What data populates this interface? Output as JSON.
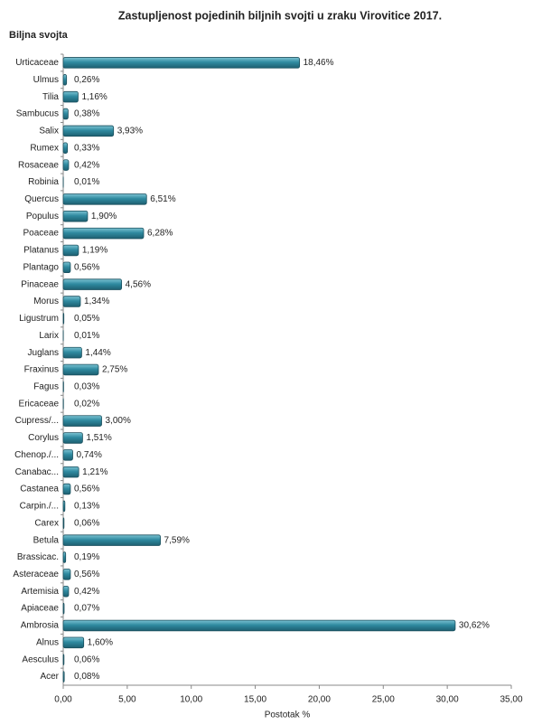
{
  "chart_data": {
    "type": "bar",
    "orientation": "horizontal",
    "title": "Zastupljenost pojedinih biljnih svojti u zraku Virovitice 2017.",
    "y_label": "Biljna svojta",
    "x_label": "Postotak %",
    "categories": [
      "Urticaceae",
      "Ulmus",
      "Tilia",
      "Sambucus",
      "Salix",
      "Rumex",
      "Rosaceae",
      "Robinia",
      "Quercus",
      "Populus",
      "Poaceae",
      "Platanus",
      "Plantago",
      "Pinaceae",
      "Morus",
      "Ligustrum",
      "Larix",
      "Juglans",
      "Fraxinus",
      "Fagus",
      "Ericaceae",
      "Cupress/...",
      "Corylus",
      "Chenop./...",
      "Canabac...",
      "Castanea",
      "Carpin./...",
      "Carex",
      "Betula",
      "Brassicac.",
      "Asteraceae",
      "Artemisia",
      "Apiaceae",
      "Ambrosia",
      "Alnus",
      "Aesculus",
      "Acer"
    ],
    "values": [
      18.46,
      0.26,
      1.16,
      0.38,
      3.93,
      0.33,
      0.42,
      0.01,
      6.51,
      1.9,
      6.28,
      1.19,
      0.56,
      4.56,
      1.34,
      0.05,
      0.01,
      1.44,
      2.75,
      0.03,
      0.02,
      3.0,
      1.51,
      0.74,
      1.21,
      0.56,
      0.13,
      0.06,
      7.59,
      0.19,
      0.56,
      0.42,
      0.07,
      30.62,
      1.6,
      0.06,
      0.08
    ],
    "value_labels": [
      "18,46%",
      "0,26%",
      "1,16%",
      "0,38%",
      "3,93%",
      "0,33%",
      "0,42%",
      "0,01%",
      "6,51%",
      "1,90%",
      "6,28%",
      "1,19%",
      "0,56%",
      "4,56%",
      "1,34%",
      "0,05%",
      "0,01%",
      "1,44%",
      "2,75%",
      "0,03%",
      "0,02%",
      "3,00%",
      "1,51%",
      "0,74%",
      "1,21%",
      "0,56%",
      "0,13%",
      "0,06%",
      "7,59%",
      "0,19%",
      "0,56%",
      "0,42%",
      "0,07%",
      "30,62%",
      "1,60%",
      "0,06%",
      "0,08%"
    ],
    "color": "#2f8aa0",
    "xlim": [
      0,
      35
    ],
    "xticks": [
      {
        "value": 0,
        "label": "0,00"
      },
      {
        "value": 5,
        "label": "5,00"
      },
      {
        "value": 10,
        "label": "10,00"
      },
      {
        "value": 15,
        "label": "15,00"
      },
      {
        "value": 20,
        "label": "20,00"
      },
      {
        "value": 25,
        "label": "25,00"
      },
      {
        "value": 30,
        "label": "30,00"
      },
      {
        "value": 35,
        "label": "35,00"
      }
    ],
    "grid": false
  }
}
